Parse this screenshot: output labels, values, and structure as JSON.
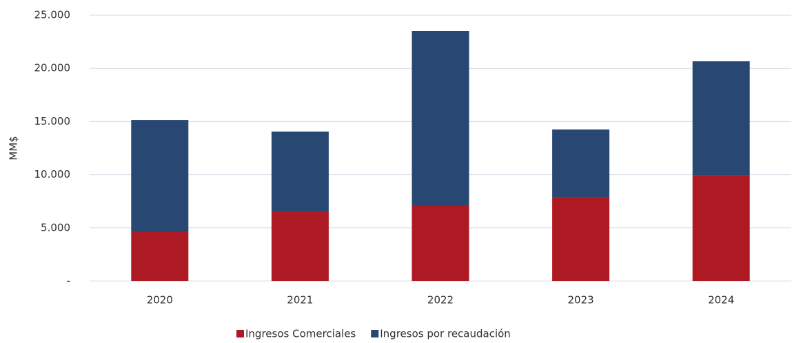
{
  "chart_data": {
    "type": "stacked_bar",
    "y_label": "MM$",
    "categories": [
      "2020",
      "2021",
      "2022",
      "2023",
      "2024"
    ],
    "series": [
      {
        "name": "Ingresos Comerciales",
        "color": "#ae1a24",
        "values": [
          4600,
          6480,
          7060,
          7840,
          9970
        ]
      },
      {
        "name": "Ingresos por recaudación",
        "color": "#284873",
        "values": [
          10550,
          7570,
          16450,
          6410,
          10690
        ]
      }
    ],
    "ylim": [
      0,
      25000
    ],
    "yticks": [
      {
        "value": 0,
        "label": "-"
      },
      {
        "value": 5000,
        "label": "5.000"
      },
      {
        "value": 10000,
        "label": "10.000"
      },
      {
        "value": 15000,
        "label": "15.000"
      },
      {
        "value": 20000,
        "label": "20.000"
      },
      {
        "value": 25000,
        "label": "25.000"
      }
    ],
    "grid": true,
    "legend": "bottom"
  }
}
